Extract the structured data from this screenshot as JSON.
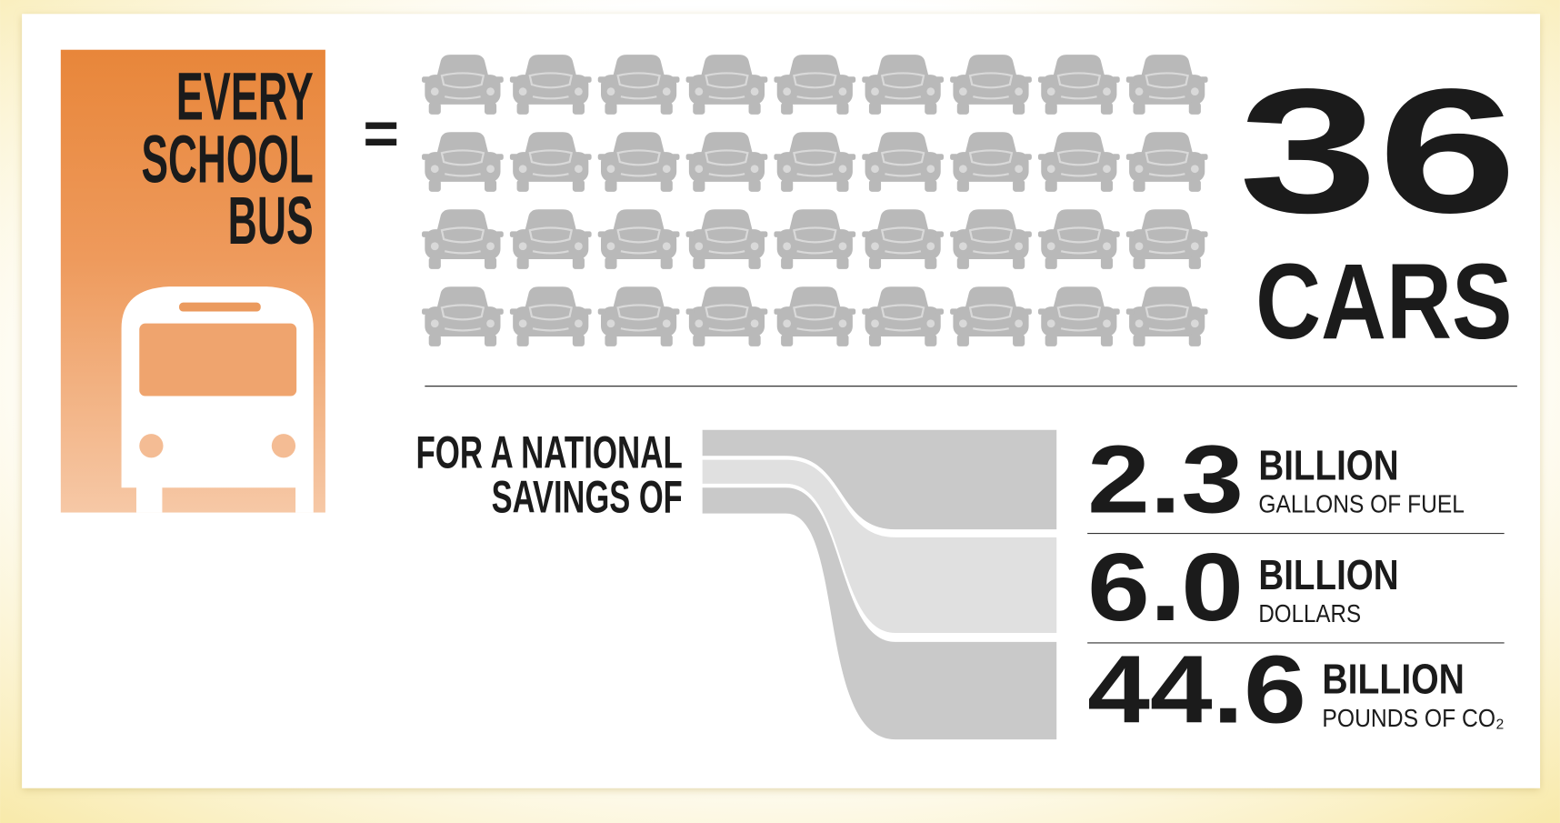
{
  "headline": {
    "lines": [
      "EVERY",
      "SCHOOL",
      "BUS"
    ]
  },
  "equals": "=",
  "cars": {
    "count": 36,
    "label": "CARS"
  },
  "savings": {
    "intro_lines": [
      "FOR A NATIONAL",
      "SAVINGS OF"
    ],
    "items": [
      {
        "amount": "2.3",
        "unit": "BILLION",
        "description": "GALLONS OF FUEL"
      },
      {
        "amount": "6.0",
        "unit": "BILLION",
        "description": "DOLLARS"
      },
      {
        "amount": "44.6",
        "unit": "BILLION",
        "description": "POUNDS OF CO₂"
      }
    ]
  }
}
